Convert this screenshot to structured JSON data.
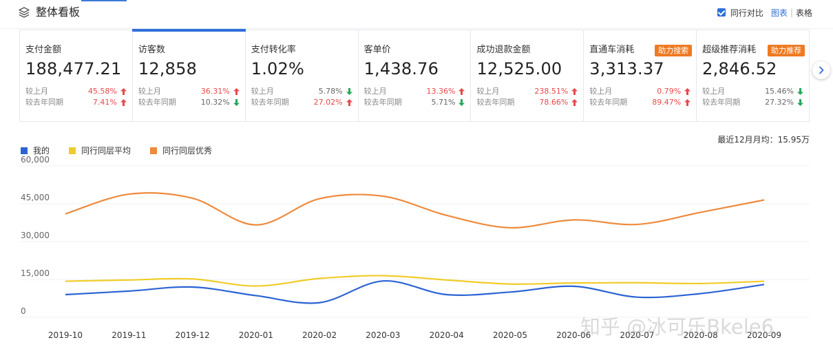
{
  "header": {
    "title": "整体看板",
    "peer_compare_label": "同行对比",
    "peer_compare_checked": true,
    "view_chart_label": "图表",
    "view_separator": "|",
    "view_table_label": "表格"
  },
  "cards": [
    {
      "name": "支付金额",
      "value": "188,477.21",
      "badge": "",
      "rows": [
        {
          "label": "较上月",
          "pct": "45.58%",
          "dir": "up"
        },
        {
          "label": "较去年同期",
          "pct": "7.41%",
          "dir": "up"
        }
      ]
    },
    {
      "name": "访客数",
      "value": "12,858",
      "badge": "",
      "selected": true,
      "rows": [
        {
          "label": "较上月",
          "pct": "36.31%",
          "dir": "up"
        },
        {
          "label": "较去年同期",
          "pct": "10.32%",
          "dir": "down"
        }
      ]
    },
    {
      "name": "支付转化率",
      "value": "1.02%",
      "badge": "",
      "rows": [
        {
          "label": "较上月",
          "pct": "5.78%",
          "dir": "down"
        },
        {
          "label": "较去年同期",
          "pct": "27.02%",
          "dir": "up"
        }
      ]
    },
    {
      "name": "客单价",
      "value": "1,438.76",
      "badge": "",
      "rows": [
        {
          "label": "较上月",
          "pct": "13.36%",
          "dir": "up"
        },
        {
          "label": "较去年同期",
          "pct": "5.71%",
          "dir": "down"
        }
      ]
    },
    {
      "name": "成功退款金额",
      "value": "12,525.00",
      "badge": "",
      "rows": [
        {
          "label": "较上月",
          "pct": "238.51%",
          "dir": "up"
        },
        {
          "label": "较去年同期",
          "pct": "78.66%",
          "dir": "up"
        }
      ]
    },
    {
      "name": "直通车消耗",
      "value": "3,313.37",
      "badge": "助力搜索",
      "rows": [
        {
          "label": "较上月",
          "pct": "0.79%",
          "dir": "up"
        },
        {
          "label": "较去年同期",
          "pct": "89.47%",
          "dir": "up"
        }
      ]
    },
    {
      "name": "超级推荐消耗",
      "value": "2,846.52",
      "badge": "助力推荐",
      "rows": [
        {
          "label": "较上月",
          "pct": "15.46%",
          "dir": "down"
        },
        {
          "label": "较去年同期",
          "pct": "27.32%",
          "dir": "down"
        }
      ]
    }
  ],
  "monthly_average": "最近12月月均：15.95万",
  "colors": {
    "mine": "#2b63d3",
    "peer_avg": "#f0cc28",
    "peer_top": "#ee8a3c",
    "up": "#e8474a",
    "down": "#26a65b",
    "accent": "#2f6fd8",
    "badge": "#ee7a21"
  },
  "chart_data": {
    "type": "line",
    "x": [
      "2019-10",
      "2019-11",
      "2019-12",
      "2020-01",
      "2020-02",
      "2020-03",
      "2020-04",
      "2020-05",
      "2020-06",
      "2020-07",
      "2020-08",
      "2020-09"
    ],
    "series": [
      {
        "name": "我的",
        "color": "#2b63d3",
        "values": [
          9000,
          10400,
          12000,
          8600,
          5800,
          14400,
          9000,
          10000,
          12300,
          8000,
          9400,
          13000
        ]
      },
      {
        "name": "同行同层平均",
        "color": "#f0cc28",
        "values": [
          14300,
          14800,
          15200,
          12400,
          15400,
          16500,
          14800,
          13200,
          13600,
          13700,
          13400,
          14300
        ]
      },
      {
        "name": "同行同层优秀",
        "color": "#ee8a3c",
        "values": [
          41000,
          48800,
          47200,
          36600,
          47000,
          48000,
          40400,
          35500,
          38600,
          36800,
          41600,
          46500
        ]
      }
    ],
    "yticks": [
      "60,000",
      "45,000",
      "30,000",
      "15,000",
      "0"
    ],
    "ytick_values": [
      60000,
      45000,
      30000,
      15000,
      0
    ],
    "ylim": [
      0,
      60000
    ],
    "grid": true,
    "legend_position": "top-left"
  },
  "watermark": "知乎 @冰可乐Bkele6"
}
